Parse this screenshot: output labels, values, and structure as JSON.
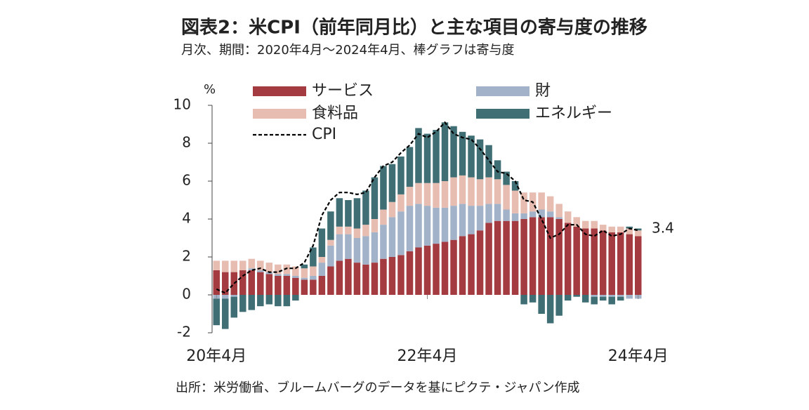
{
  "chart_data": {
    "type": "bar",
    "title": "図表2：米CPI（前年同月比）と主な項目の寄与度の推移",
    "subtitle": "月次、期間：2020年4月～2024年4月、棒グラフは寄与度",
    "y_label": "%",
    "source": "出所：米労働省、ブルームバーグのデータを基にピクテ・ジャパン作成",
    "categories": [
      "20年4月",
      null,
      null,
      null,
      null,
      null,
      null,
      null,
      null,
      null,
      null,
      null,
      null,
      null,
      null,
      null,
      null,
      null,
      null,
      null,
      null,
      null,
      null,
      null,
      "22年4月",
      null,
      null,
      null,
      null,
      null,
      null,
      null,
      null,
      null,
      null,
      null,
      null,
      null,
      null,
      null,
      null,
      null,
      null,
      null,
      null,
      null,
      null,
      null,
      "24年4月"
    ],
    "ylim": [
      -2,
      10
    ],
    "yticks": [
      -2,
      0,
      2,
      4,
      6,
      8,
      10
    ],
    "stacked": true,
    "series": [
      {
        "name": "サービス",
        "color": "#a33b40",
        "values": [
          1.3,
          1.2,
          1.2,
          1.3,
          1.3,
          1.2,
          1.1,
          1.0,
          1.0,
          0.9,
          0.8,
          0.8,
          1.0,
          1.5,
          1.8,
          1.9,
          1.7,
          1.6,
          1.7,
          1.9,
          2.0,
          2.1,
          2.3,
          2.5,
          2.6,
          2.7,
          2.8,
          2.9,
          3.1,
          3.2,
          3.4,
          3.8,
          3.9,
          3.9,
          3.9,
          4.0,
          4.1,
          4.1,
          4.1,
          4.0,
          3.8,
          3.6,
          3.5,
          3.5,
          3.4,
          3.3,
          3.3,
          3.2,
          3.1
        ]
      },
      {
        "name": "財",
        "color": "#a2b3c9",
        "values": [
          -0.2,
          -0.2,
          -0.1,
          0,
          0.1,
          0.1,
          0.1,
          0.1,
          0.1,
          0.1,
          0.1,
          0.2,
          0.7,
          1.1,
          1.4,
          1.3,
          1.3,
          1.5,
          1.6,
          1.8,
          2.1,
          2.3,
          2.4,
          2.3,
          2.1,
          1.9,
          1.8,
          1.8,
          1.7,
          1.5,
          1.3,
          1.0,
          0.9,
          0.6,
          0.4,
          0.3,
          0.3,
          0.4,
          0.3,
          0.1,
          0,
          0,
          0,
          -0.1,
          -0.1,
          -0.1,
          -0.1,
          -0.2,
          -0.2
        ]
      },
      {
        "name": "食料品",
        "color": "#e7bcb1",
        "values": [
          0.5,
          0.6,
          0.6,
          0.5,
          0.5,
          0.5,
          0.5,
          0.5,
          0.5,
          0.5,
          0.5,
          0.5,
          0.3,
          0.3,
          0.4,
          0.4,
          0.5,
          0.6,
          0.7,
          0.8,
          0.8,
          0.9,
          1.0,
          1.1,
          1.2,
          1.3,
          1.4,
          1.5,
          1.5,
          1.5,
          1.4,
          1.4,
          1.3,
          1.3,
          1.2,
          1.1,
          1.0,
          0.9,
          0.8,
          0.7,
          0.6,
          0.5,
          0.4,
          0.4,
          0.3,
          0.3,
          0.3,
          0.3,
          0.3
        ]
      },
      {
        "name": "エネルギー",
        "color": "#3f6f74",
        "values": [
          -1.4,
          -1.6,
          -1.1,
          -0.9,
          -0.8,
          -0.6,
          -0.5,
          -0.6,
          -0.6,
          -0.3,
          0.2,
          1.0,
          1.5,
          1.5,
          1.5,
          1.4,
          1.6,
          1.8,
          2.2,
          2.3,
          2.0,
          2.0,
          2.1,
          2.9,
          2.6,
          2.8,
          3.1,
          2.7,
          2.3,
          2.2,
          2.1,
          1.7,
          1.0,
          0.7,
          0.5,
          -0.5,
          -0.4,
          -1.0,
          -1.5,
          -1.1,
          -0.3,
          -0.1,
          -0.4,
          -0.4,
          -0.2,
          -0.4,
          -0.2,
          0.1,
          0.1
        ]
      },
      {
        "name": "CPI",
        "type": "line",
        "color": "#000000",
        "dashed": true,
        "values": [
          0.3,
          0.1,
          0.6,
          1.0,
          1.3,
          1.4,
          1.2,
          1.2,
          1.4,
          1.4,
          1.7,
          2.6,
          4.2,
          5.0,
          5.4,
          5.4,
          5.3,
          5.4,
          6.2,
          6.8,
          7.0,
          7.5,
          7.9,
          8.5,
          8.3,
          8.6,
          9.1,
          8.5,
          8.3,
          8.2,
          7.7,
          7.1,
          6.5,
          6.4,
          6.0,
          5.0,
          4.9,
          4.0,
          3.0,
          3.2,
          3.7,
          3.7,
          3.2,
          3.1,
          3.4,
          3.1,
          3.2,
          3.5,
          3.4
        ]
      }
    ]
  }
}
